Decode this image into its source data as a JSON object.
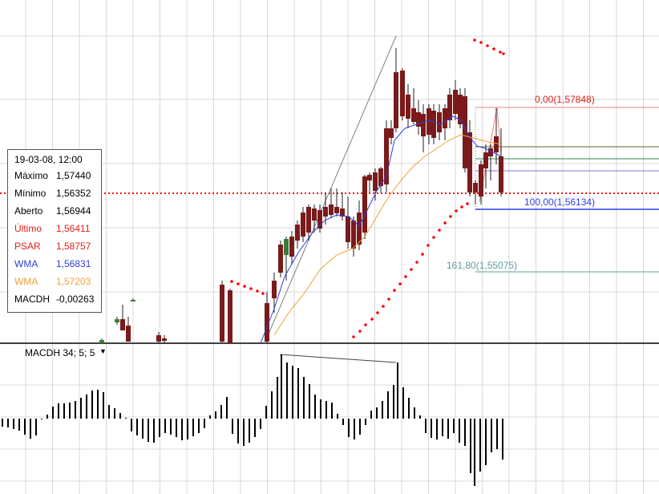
{
  "info_panel": {
    "date": "19-03-08, 12:00",
    "rows": [
      {
        "label": "Máximo",
        "value": "1,57440",
        "color": "#000000"
      },
      {
        "label": "Mínimo",
        "value": "1,56352",
        "color": "#000000"
      },
      {
        "label": "Aberto",
        "value": "1,56944",
        "color": "#000000"
      },
      {
        "label": "Último",
        "value": "1,56411",
        "color": "#e0201b"
      },
      {
        "label": "PSAR",
        "value": "1,58757",
        "color": "#e0201b"
      },
      {
        "label": "WMA",
        "value": "1,56831",
        "color": "#2f3fe0"
      },
      {
        "label": "WMA",
        "value": "1,57203",
        "color": "#f2a03a"
      },
      {
        "label": "MACDH",
        "value": "-0,00263",
        "color": "#000000"
      }
    ]
  },
  "macd_panel": {
    "title": "MACDH 34; 5; 5",
    "dropdown_icon": "triangle-down-icon"
  },
  "fibonacci": {
    "levels": [
      {
        "label": "0,00(1,57848)",
        "color": "#e0201b"
      },
      {
        "label": "100,00(1,56134)",
        "color": "#2f3fe0"
      },
      {
        "label": "161,80(1,55075)",
        "color": "#5f9ea0"
      }
    ]
  },
  "colors": {
    "bull_candle": "#3a7a3a",
    "bear_candle": "#7a1a1a",
    "wma_fast": "#2f3fe0",
    "wma_slow": "#f2a03a",
    "psar": "#ff0000",
    "grid": "#d8d8d8"
  }
}
